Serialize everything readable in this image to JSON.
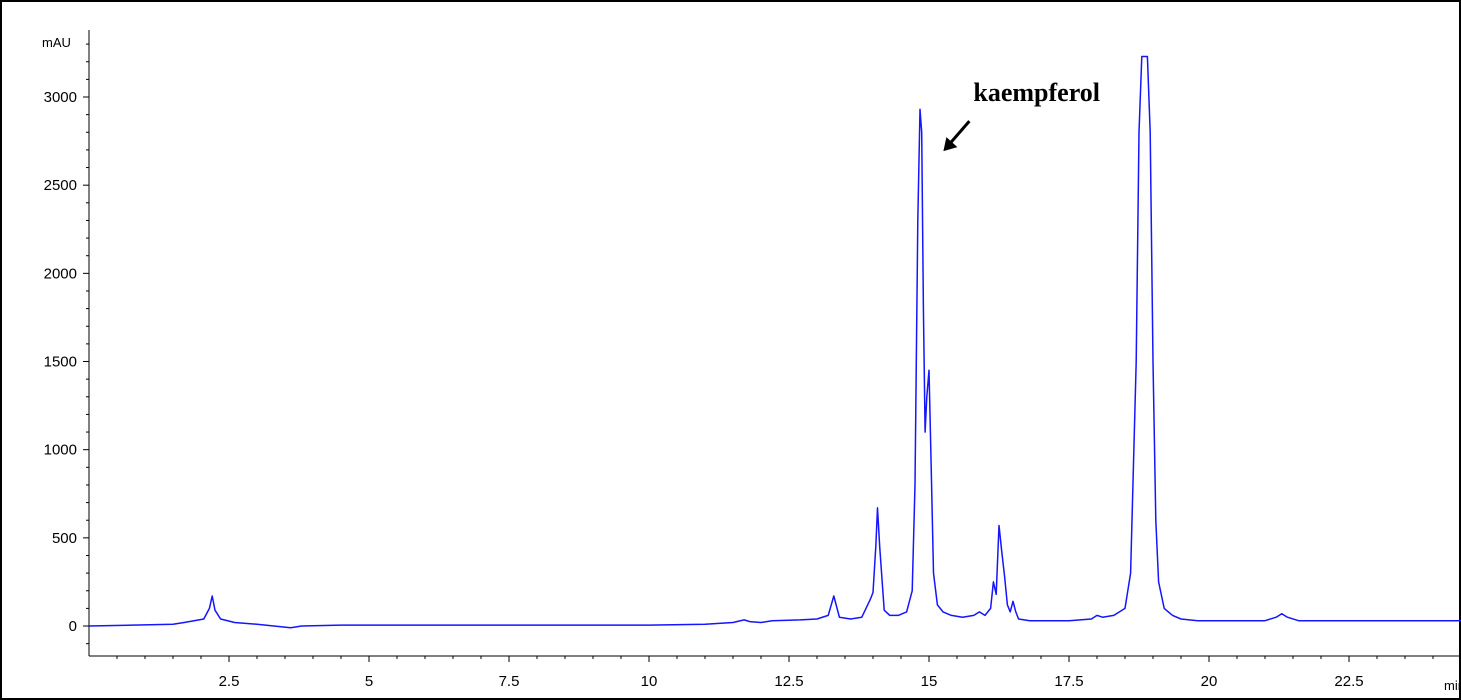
{
  "chart_data": {
    "type": "line",
    "title": "",
    "xlabel": "min",
    "ylabel": "mAU",
    "xlim": [
      0,
      24.5
    ],
    "ylim": [
      -170,
      3380
    ],
    "x_ticks": [
      2.5,
      5,
      7.5,
      10,
      12.5,
      15,
      17.5,
      20,
      22.5
    ],
    "x_tick_labels": [
      "2.5",
      "5",
      "7.5",
      "10",
      "12.5",
      "15",
      "17.5",
      "20",
      "22.5"
    ],
    "y_ticks": [
      0,
      500,
      1000,
      1500,
      2000,
      2500,
      3000
    ],
    "y_tick_labels": [
      "0",
      "500",
      "1000",
      "1500",
      "2000",
      "2500",
      "3000"
    ],
    "grid": false,
    "line_color": "#1515ff",
    "series": [
      {
        "x": [
          0,
          1.5,
          1.7,
          2.05,
          2.15,
          2.2,
          2.25,
          2.35,
          2.6,
          3.0,
          3.3,
          3.6,
          3.8,
          4.5,
          6,
          8,
          10,
          11.0,
          11.5,
          11.7,
          11.8,
          12.0,
          12.2,
          12.7,
          13.0,
          13.2,
          13.3,
          13.4,
          13.6,
          13.8,
          13.95,
          14.0,
          14.05,
          14.08,
          14.12,
          14.2,
          14.3,
          14.45,
          14.6,
          14.7,
          14.75,
          14.8,
          14.84,
          14.87,
          14.9,
          14.93,
          14.96,
          15.0,
          15.04,
          15.08,
          15.15,
          15.25,
          15.4,
          15.6,
          15.8,
          15.9,
          16.0,
          16.1,
          16.15,
          16.2,
          16.25,
          16.3,
          16.35,
          16.4,
          16.45,
          16.5,
          16.55,
          16.6,
          16.8,
          17.0,
          17.5,
          17.9,
          18.0,
          18.1,
          18.3,
          18.4,
          18.5,
          18.6,
          18.7,
          18.75,
          18.8,
          18.85,
          18.9,
          18.95,
          19.0,
          19.05,
          19.1,
          19.2,
          19.35,
          19.5,
          19.8,
          20.5,
          21.0,
          21.2,
          21.3,
          21.4,
          21.6,
          22,
          23,
          24.5
        ],
        "y": [
          0,
          10,
          20,
          40,
          100,
          170,
          90,
          40,
          20,
          10,
          0,
          -10,
          0,
          5,
          5,
          5,
          5,
          10,
          20,
          35,
          25,
          20,
          30,
          35,
          40,
          60,
          170,
          50,
          40,
          50,
          150,
          190,
          450,
          670,
          450,
          90,
          60,
          60,
          80,
          200,
          800,
          2300,
          2930,
          2800,
          1800,
          1100,
          1300,
          1450,
          900,
          300,
          120,
          80,
          60,
          50,
          60,
          80,
          60,
          100,
          250,
          180,
          570,
          420,
          280,
          120,
          80,
          140,
          80,
          40,
          30,
          30,
          30,
          40,
          60,
          50,
          60,
          80,
          100,
          300,
          1500,
          2800,
          3230,
          3230,
          3230,
          2800,
          1500,
          600,
          250,
          100,
          60,
          40,
          30,
          30,
          30,
          50,
          70,
          50,
          30,
          30,
          30,
          30
        ]
      }
    ],
    "annotations": [
      {
        "text": "kaempferol",
        "points_to": {
          "x": 14.9,
          "y": 2750
        }
      }
    ]
  }
}
